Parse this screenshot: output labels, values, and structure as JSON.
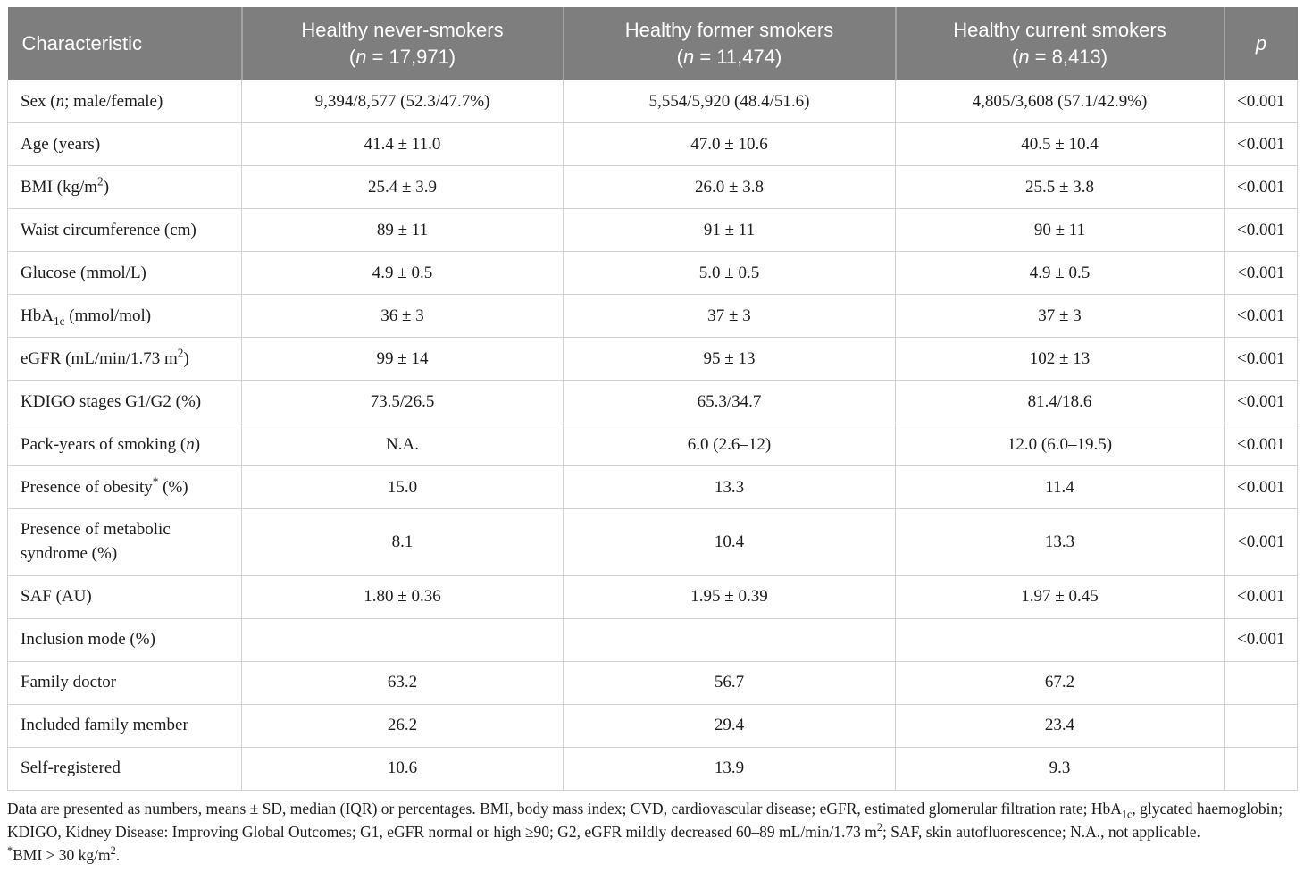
{
  "table": {
    "header": {
      "characteristic": "Characteristic",
      "groups": [
        {
          "line1": "Healthy never-smokers",
          "line2": "(*n* = 17,971)"
        },
        {
          "line1": "Healthy former smokers",
          "line2": "(*n* = 11,474)"
        },
        {
          "line1": "Healthy current smokers",
          "line2": "(*n* = 8,413)"
        }
      ],
      "p": "*p*"
    },
    "rows": [
      {
        "cells": [
          "Sex (*n*; male/female)",
          "9,394/8,577 (52.3/47.7%)",
          "5,554/5,920 (48.4/51.6)",
          "4,805/3,608 (57.1/42.9%)",
          "<0.001"
        ]
      },
      {
        "cells": [
          "Age (years)",
          "41.4 ± 11.0",
          "47.0 ± 10.6",
          "40.5 ± 10.4",
          "<0.001"
        ]
      },
      {
        "cells": [
          "BMI (kg/m^2^)",
          "25.4 ± 3.9",
          "26.0 ± 3.8",
          "25.5 ± 3.8",
          "<0.001"
        ]
      },
      {
        "cells": [
          "Waist circumference (cm)",
          "89 ± 11",
          "91 ± 11",
          "90 ± 11",
          "<0.001"
        ]
      },
      {
        "cells": [
          "Glucose (mmol/L)",
          "4.9 ± 0.5",
          "5.0 ± 0.5",
          "4.9 ± 0.5",
          "<0.001"
        ]
      },
      {
        "cells": [
          "HbA~1c~ (mmol/mol)",
          "36 ± 3",
          "37 ± 3",
          "37 ± 3",
          "<0.001"
        ]
      },
      {
        "cells": [
          "eGFR (mL/min/1.73 m^2^)",
          "99 ± 14",
          "95 ± 13",
          "102 ± 13",
          "<0.001"
        ]
      },
      {
        "cells": [
          "KDIGO stages G1/G2 (%)",
          "73.5/26.5",
          "65.3/34.7",
          "81.4/18.6",
          "<0.001"
        ]
      },
      {
        "cells": [
          "Pack-years of smoking (*n*)",
          "N.A.",
          "6.0 (2.6–12)",
          "12.0 (6.0–19.5)",
          "<0.001"
        ]
      },
      {
        "cells": [
          "Presence of obesity^*^ (%)",
          "15.0",
          "13.3",
          "11.4",
          "<0.001"
        ]
      },
      {
        "cells": [
          "Presence of metabolic syndrome (%)",
          "8.1",
          "10.4",
          "13.3",
          "<0.001"
        ]
      },
      {
        "cells": [
          "SAF (AU)",
          "1.80 ± 0.36",
          "1.95 ± 0.39",
          "1.97 ± 0.45",
          "<0.001"
        ]
      },
      {
        "cells": [
          "Inclusion mode (%)",
          "",
          "",
          "",
          "<0.001"
        ]
      },
      {
        "cells": [
          "Family doctor",
          "63.2",
          "56.7",
          "67.2",
          ""
        ]
      },
      {
        "cells": [
          "Included family member",
          "26.2",
          "29.4",
          "23.4",
          ""
        ]
      },
      {
        "cells": [
          "Self-registered",
          "10.6",
          "13.9",
          "9.3",
          ""
        ]
      }
    ]
  },
  "footnotes": [
    "Data are presented as numbers, means ± SD, median (IQR) or percentages. BMI, body mass index; CVD, cardiovascular disease; eGFR, estimated glomerular filtration rate; HbA~1c~, glycated haemoglobin; KDIGO, Kidney Disease: Improving Global Outcomes; G1, eGFR normal or high ≥90; G2, eGFR mildly decreased 60–89 mL/min/1.73 m^2^; SAF, skin autofluorescence; N.A., not applicable.",
    "^*^BMI > 30 kg/m^2^."
  ],
  "colors": {
    "header_background": "#7e7e7e",
    "header_text": "#ffffff",
    "header_divider": "#a3a3a3",
    "body_border": "#d2d2d2",
    "body_text": "#1c1c1c"
  }
}
